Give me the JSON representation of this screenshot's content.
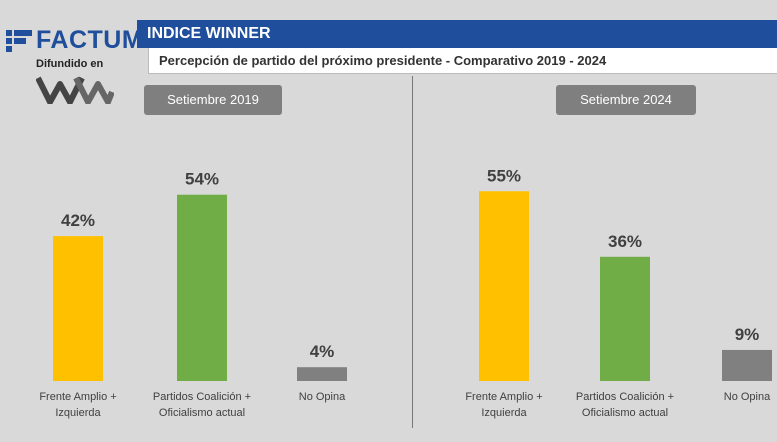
{
  "brand": {
    "name": "FACTUM",
    "subtitle": "Difundido en",
    "color": "#1f4e9c"
  },
  "header": {
    "title": "INDICE WINNER",
    "subtitle": "Percepción de partido del próximo presidente - Comparativo 2019 - 2024"
  },
  "colors": {
    "frente": "#ffc000",
    "coalicion": "#70ad47",
    "no_opina": "#808080"
  },
  "chart_data": [
    {
      "type": "bar",
      "title": "Setiembre 2019",
      "categories": [
        "Frente Amplio + Izquierda",
        "Partidos Coalición + Oficialismo actual",
        "No Opina"
      ],
      "category_lines": [
        [
          "Frente Amplio +",
          "Izquierda"
        ],
        [
          "Partidos Coalición +",
          "Oficialismo actual"
        ],
        [
          "No Opina"
        ]
      ],
      "values": [
        42,
        54,
        4
      ],
      "labels": [
        "42%",
        "54%",
        "4%"
      ],
      "ylim": [
        0,
        60
      ]
    },
    {
      "type": "bar",
      "title": "Setiembre 2024",
      "categories": [
        "Frente Amplio + Izquierda",
        "Partidos Coalición + Oficialismo actual",
        "No Opina"
      ],
      "category_lines": [
        [
          "Frente Amplio +",
          "Izquierda"
        ],
        [
          "Partidos Coalición +",
          "Oficialismo actual"
        ],
        [
          "No Opina"
        ]
      ],
      "values": [
        55,
        36,
        9
      ],
      "labels": [
        "55%",
        "36%",
        "9%"
      ],
      "ylim": [
        0,
        60
      ]
    }
  ]
}
